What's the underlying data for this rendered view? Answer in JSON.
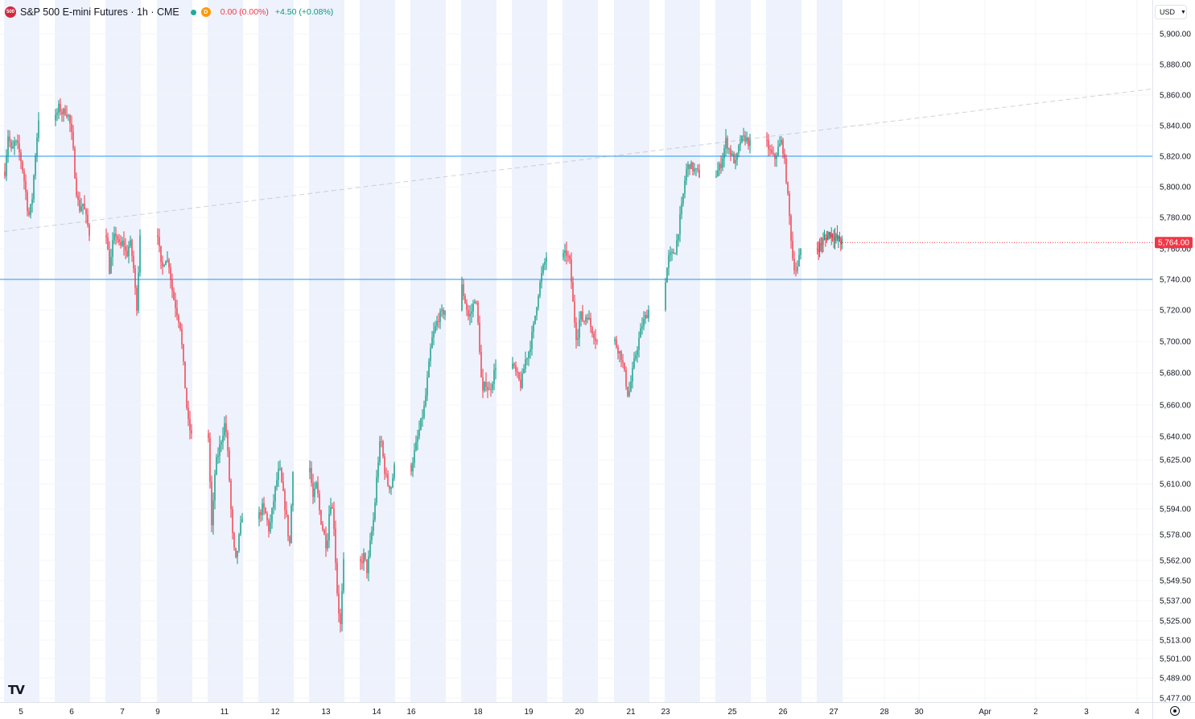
{
  "header": {
    "badge_text": "500",
    "title": "S&P 500 E-mini Futures · 1h · CME",
    "market_status_icon": "green-dot-icon",
    "data_badge": "D",
    "change_abs": "0.00 (0.00%)",
    "change_day": "+4.50 (+0.08%)"
  },
  "currency_button": "USD",
  "logo_text": "TV",
  "colors": {
    "up": "#089981",
    "down": "#f23645",
    "session_band": "#eef2fd",
    "hline": "#2196f3",
    "trendline": "#b2b5be",
    "price_label_bg": "#f23645"
  },
  "chart_data": {
    "type": "candlestick",
    "interval": "1h",
    "price_scale": "log-like (non-uniform tick spacing)",
    "y_ticks": [
      "5,900.00",
      "5,880.00",
      "5,860.00",
      "5,840.00",
      "5,820.00",
      "5,800.00",
      "5,780.00",
      "5,760.00",
      "5,740.00",
      "5,720.00",
      "5,700.00",
      "5,680.00",
      "5,660.00",
      "5,640.00",
      "5,625.00",
      "5,610.00",
      "5,594.00",
      "5,578.00",
      "5,562.00",
      "5,549.50",
      "5,537.00",
      "5,525.00",
      "5,513.00",
      "5,501.00",
      "5,489.00",
      "5,477.00"
    ],
    "x_labels": [
      "5",
      "6",
      "7",
      "9",
      "11",
      "12",
      "13",
      "14",
      "16",
      "18",
      "19",
      "20",
      "21",
      "23",
      "25",
      "26",
      "27",
      "28",
      "30",
      "Apr",
      "2",
      "3",
      "4"
    ],
    "current_price": 5764.0,
    "current_price_label": "5,764.00",
    "horizontal_lines": [
      5820,
      5740
    ],
    "trendline": {
      "from": {
        "x": "5",
        "y": 5771
      },
      "to": {
        "x": "4",
        "y": 5864
      }
    },
    "trading_days": [
      {
        "label": "5",
        "closes": [
          5810,
          5835,
          5822,
          5830,
          5825,
          5815,
          5800,
          5780,
          5790,
          5820,
          5845
        ]
      },
      {
        "label": "6",
        "closes": [
          5845,
          5852,
          5848,
          5850,
          5845,
          5830,
          5800,
          5785,
          5790,
          5780,
          5770
        ]
      },
      {
        "label": "7",
        "closes": [
          5770,
          5745,
          5765,
          5770,
          5760,
          5765,
          5755,
          5765,
          5750,
          5720,
          5770
        ]
      },
      {
        "label": "9",
        "closes": [
          5770,
          5745,
          5755,
          5750,
          5730,
          5720,
          5710,
          5680,
          5650,
          5640
        ]
      },
      {
        "label": "11",
        "closes": [
          5640,
          5580,
          5620,
          5630,
          5640,
          5650,
          5620,
          5580,
          5560,
          5575,
          5590
        ]
      },
      {
        "label": "12",
        "closes": [
          5590,
          5595,
          5590,
          5580,
          5595,
          5610,
          5620,
          5605,
          5590,
          5570,
          5620
        ]
      },
      {
        "label": "13",
        "closes": [
          5620,
          5600,
          5610,
          5590,
          5580,
          5570,
          5600,
          5590,
          5545,
          5520,
          5560
        ]
      },
      {
        "label": "14",
        "closes": [
          5560,
          5565,
          5555,
          5575,
          5590,
          5620,
          5640,
          5620,
          5610,
          5608,
          5620
        ]
      },
      {
        "label": "16",
        "closes": [
          5620,
          5640,
          5660,
          5700,
          5715,
          5720
        ]
      },
      {
        "label": "18",
        "closes": [
          5735,
          5725,
          5715,
          5720,
          5730,
          5705,
          5665,
          5675,
          5668,
          5675,
          5685
        ]
      },
      {
        "label": "19",
        "closes": [
          5685,
          5678,
          5672,
          5688,
          5695,
          5710,
          5730,
          5745,
          5755
        ]
      },
      {
        "label": "20",
        "closes": [
          5755,
          5757,
          5750,
          5720,
          5700,
          5718,
          5712,
          5718,
          5710,
          5705,
          5700
        ]
      },
      {
        "label": "21",
        "closes": [
          5700,
          5690,
          5665,
          5690,
          5710,
          5720
        ]
      },
      {
        "label": "23",
        "closes": [
          5740,
          5755,
          5756,
          5760,
          5775,
          5790,
          5810,
          5815,
          5812,
          5810,
          5808
        ]
      },
      {
        "label": "25",
        "closes": [
          5808,
          5815,
          5830,
          5822,
          5815,
          5830,
          5832,
          5828
        ]
      },
      {
        "label": "26",
        "closes": [
          5828,
          5822,
          5818,
          5825,
          5830,
          5810,
          5780,
          5750,
          5745,
          5760
        ]
      },
      {
        "label": "27",
        "closes": [
          5760,
          5765,
          5770,
          5767,
          5764
        ]
      }
    ]
  }
}
